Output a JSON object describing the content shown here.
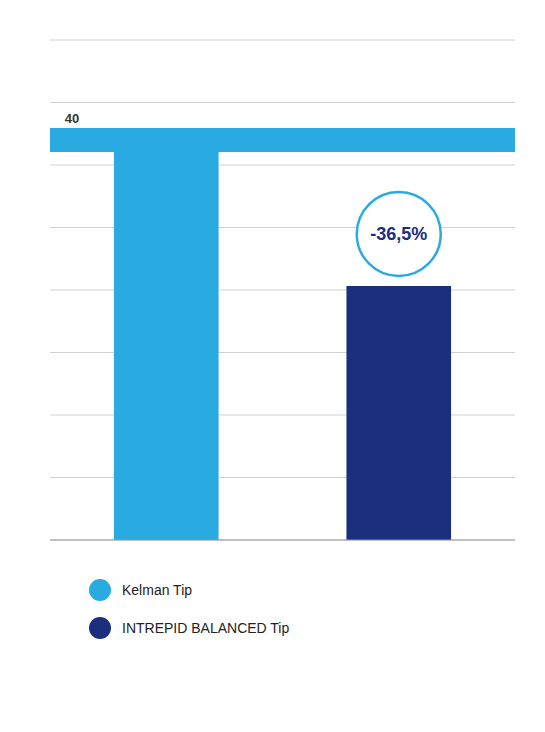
{
  "chart_data": {
    "type": "bar",
    "categories": [
      "Kelman Tip",
      "INTREPID BALANCED Tip"
    ],
    "values": [
      100,
      63.5
    ],
    "colors": [
      "#29ABE2",
      "#1B2F7E"
    ],
    "ylim": [
      0,
      125
    ],
    "yticks": [
      0,
      15.625,
      31.25,
      46.875,
      62.5,
      78.125,
      93.75,
      109.375,
      125
    ],
    "grid": true,
    "tick_labels": false,
    "legend": "bottom",
    "bands": [
      {
        "y0": 97,
        "y1": 103,
        "color": "#29ABE2"
      }
    ],
    "annotations": [
      {
        "text": "40",
        "color": "#333333"
      },
      {
        "text": "-36,5%",
        "color": "#1B2F7E",
        "edge_color": "#29ABE2"
      }
    ]
  }
}
